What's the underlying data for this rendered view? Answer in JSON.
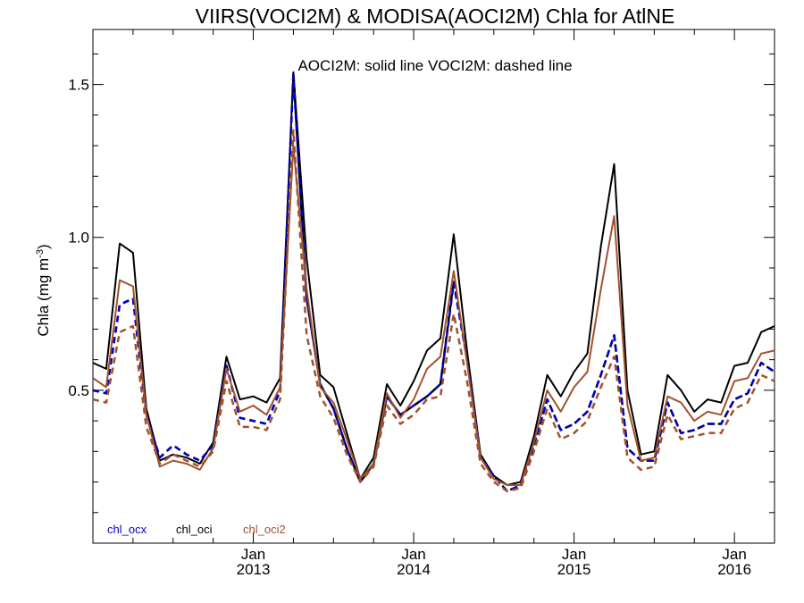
{
  "chart_data": {
    "type": "line",
    "title": "VIIRS(VOCI2M) & MODISA(AOCI2M)  Chla for AtlNE",
    "annotation": "AOCI2M: solid line   VOCI2M: dashed line",
    "ylabel": "Chla (mg m",
    "ylabel_exp": "-3",
    "ylabel_close": ")",
    "xlabel": "",
    "ylim": [
      0.0,
      1.68
    ],
    "xlim": [
      2012.0,
      2016.25
    ],
    "yticks": [
      0.5,
      1.0,
      1.5
    ],
    "ytick_labels": [
      "0.5",
      "1.0",
      "1.5"
    ],
    "xticks": [
      2013.0,
      2014.0,
      2015.0,
      2016.0
    ],
    "xtick_labels": [
      [
        "Jan",
        "2013"
      ],
      [
        "Jan",
        "2014"
      ],
      [
        "Jan",
        "2015"
      ],
      [
        "Jan",
        "2016"
      ]
    ],
    "grid": false,
    "legend": [
      "chl_ocx",
      "chl_oci",
      "chl_oci2"
    ],
    "legend_position": "bottom-left",
    "colors": {
      "chl_ocx": "#0000cc",
      "chl_oci": "#000000",
      "chl_oci2": "#a0522d"
    },
    "x": [
      2012.0,
      2012.083,
      2012.167,
      2012.25,
      2012.333,
      2012.417,
      2012.5,
      2012.583,
      2012.667,
      2012.75,
      2012.833,
      2012.917,
      2013.0,
      2013.083,
      2013.167,
      2013.25,
      2013.333,
      2013.417,
      2013.5,
      2013.583,
      2013.667,
      2013.75,
      2013.833,
      2013.917,
      2014.0,
      2014.083,
      2014.167,
      2014.25,
      2014.333,
      2014.417,
      2014.5,
      2014.583,
      2014.667,
      2014.75,
      2014.833,
      2014.917,
      2015.0,
      2015.083,
      2015.167,
      2015.25,
      2015.333,
      2015.417,
      2015.5,
      2015.583,
      2015.667,
      2015.75,
      2015.833,
      2015.917,
      2016.0,
      2016.083,
      2016.167,
      2016.25
    ],
    "series": [
      {
        "name": "chl_oci",
        "style": "solid",
        "values": [
          0.59,
          0.57,
          0.98,
          0.95,
          0.44,
          0.27,
          0.29,
          0.28,
          0.26,
          0.33,
          0.61,
          0.47,
          0.48,
          0.46,
          0.54,
          1.54,
          0.93,
          0.55,
          0.51,
          0.36,
          0.21,
          0.28,
          0.52,
          0.45,
          0.53,
          0.63,
          0.67,
          1.01,
          0.63,
          0.29,
          0.22,
          0.19,
          0.2,
          0.35,
          0.55,
          0.48,
          0.56,
          0.62,
          0.97,
          1.24,
          0.5,
          0.29,
          0.3,
          0.55,
          0.5,
          0.43,
          0.47,
          0.46,
          0.58,
          0.59,
          0.69,
          0.71
        ]
      },
      {
        "name": "chl_oci",
        "style": "dashed",
        "values": [
          0.5,
          0.49,
          0.78,
          0.8,
          0.42,
          0.28,
          0.32,
          0.29,
          0.27,
          0.32,
          0.58,
          0.41,
          0.4,
          0.39,
          0.5,
          1.54,
          0.8,
          0.52,
          0.44,
          0.31,
          0.2,
          0.26,
          0.48,
          0.42,
          0.45,
          0.48,
          0.52,
          0.86,
          0.6,
          0.28,
          0.22,
          0.17,
          0.19,
          0.32,
          0.47,
          0.37,
          0.39,
          0.43,
          0.55,
          0.68,
          0.31,
          0.27,
          0.27,
          0.46,
          0.36,
          0.37,
          0.39,
          0.39,
          0.47,
          0.49,
          0.59,
          0.56
        ]
      },
      {
        "name": "chl_ocx",
        "style": "dashed",
        "values": [
          0.5,
          0.49,
          0.78,
          0.8,
          0.42,
          0.28,
          0.32,
          0.29,
          0.27,
          0.32,
          0.58,
          0.41,
          0.4,
          0.39,
          0.5,
          1.53,
          0.8,
          0.52,
          0.44,
          0.31,
          0.2,
          0.26,
          0.48,
          0.42,
          0.45,
          0.48,
          0.52,
          0.85,
          0.6,
          0.28,
          0.22,
          0.17,
          0.19,
          0.32,
          0.47,
          0.37,
          0.39,
          0.43,
          0.55,
          0.68,
          0.31,
          0.27,
          0.27,
          0.46,
          0.36,
          0.37,
          0.39,
          0.39,
          0.47,
          0.49,
          0.59,
          0.56
        ]
      },
      {
        "name": "chl_oci2",
        "style": "solid",
        "values": [
          0.54,
          0.51,
          0.86,
          0.84,
          0.42,
          0.25,
          0.27,
          0.26,
          0.24,
          0.31,
          0.57,
          0.43,
          0.45,
          0.42,
          0.51,
          1.3,
          0.83,
          0.51,
          0.46,
          0.34,
          0.21,
          0.26,
          0.49,
          0.41,
          0.47,
          0.57,
          0.61,
          0.89,
          0.59,
          0.28,
          0.21,
          0.19,
          0.19,
          0.33,
          0.5,
          0.43,
          0.51,
          0.56,
          0.83,
          1.07,
          0.45,
          0.27,
          0.28,
          0.48,
          0.46,
          0.4,
          0.43,
          0.42,
          0.53,
          0.54,
          0.62,
          0.63
        ]
      },
      {
        "name": "chl_oci2",
        "style": "dashed",
        "values": [
          0.47,
          0.46,
          0.69,
          0.71,
          0.38,
          0.26,
          0.29,
          0.27,
          0.25,
          0.3,
          0.53,
          0.38,
          0.38,
          0.37,
          0.47,
          1.35,
          0.68,
          0.48,
          0.41,
          0.29,
          0.2,
          0.25,
          0.45,
          0.39,
          0.42,
          0.47,
          0.48,
          0.75,
          0.53,
          0.26,
          0.2,
          0.17,
          0.18,
          0.3,
          0.44,
          0.34,
          0.36,
          0.4,
          0.51,
          0.61,
          0.28,
          0.24,
          0.25,
          0.42,
          0.34,
          0.35,
          0.36,
          0.36,
          0.44,
          0.46,
          0.55,
          0.53
        ]
      }
    ]
  }
}
